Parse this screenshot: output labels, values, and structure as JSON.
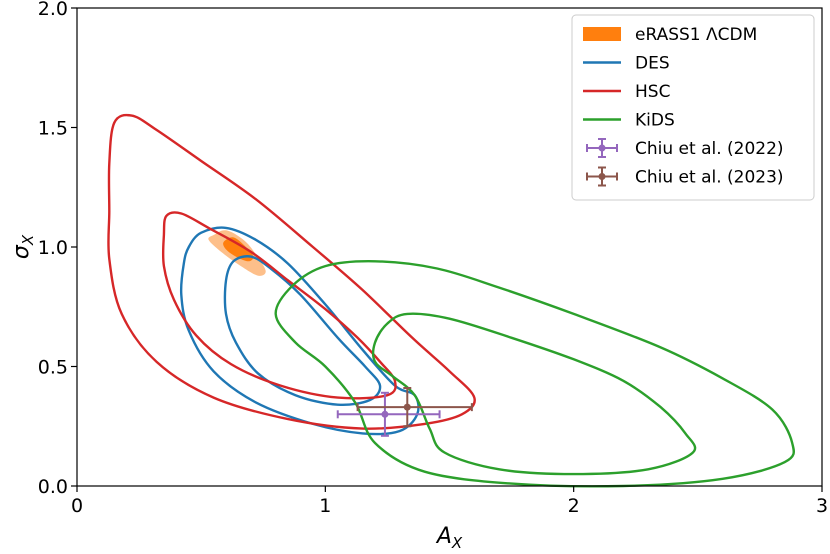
{
  "chart_data": {
    "type": "contour",
    "xlabel": "A",
    "xlabel_sub": "X",
    "ylabel": "σ",
    "ylabel_sub": "X",
    "xlim": [
      0,
      3
    ],
    "ylim": [
      0,
      2
    ],
    "x_ticks": [
      0,
      1,
      2,
      3
    ],
    "x_tick_labels": [
      "0",
      "1",
      "2",
      "3"
    ],
    "y_ticks": [
      0,
      0.5,
      1,
      1.5,
      2
    ],
    "y_tick_labels": [
      "0.0",
      "0.5",
      "1.0",
      "1.5",
      "2.0"
    ],
    "legend_position": "top-right",
    "colors": {
      "erass_outer": "#fdbf8a",
      "erass_inner": "#ff7f0e",
      "des": "#1f77b4",
      "hsc": "#d62728",
      "kids": "#2ca02c",
      "chiu2022": "#9467bd",
      "chiu2023": "#8c564b"
    },
    "series": [
      {
        "name": "eRASS1 ΛCDM",
        "kind": "filled",
        "contours": [
          [
            [
              0.55,
              1.05
            ],
            [
              0.6,
              1.07
            ],
            [
              0.67,
              1.03
            ],
            [
              0.72,
              0.97
            ],
            [
              0.76,
              0.9
            ],
            [
              0.73,
              0.88
            ],
            [
              0.66,
              0.92
            ],
            [
              0.58,
              0.98
            ],
            [
              0.53,
              1.03
            ]
          ],
          [
            [
              0.59,
              1.02
            ],
            [
              0.63,
              1.04
            ],
            [
              0.68,
              1.0
            ],
            [
              0.71,
              0.96
            ],
            [
              0.69,
              0.94
            ],
            [
              0.64,
              0.96
            ],
            [
              0.6,
              0.99
            ]
          ]
        ]
      },
      {
        "name": "DES",
        "kind": "line",
        "contours": [
          [
            [
              0.45,
              1.0
            ],
            [
              0.5,
              1.06
            ],
            [
              0.6,
              1.08
            ],
            [
              0.72,
              1.03
            ],
            [
              0.85,
              0.93
            ],
            [
              1.0,
              0.76
            ],
            [
              1.15,
              0.57
            ],
            [
              1.28,
              0.42
            ],
            [
              1.36,
              0.38
            ],
            [
              1.37,
              0.3
            ],
            [
              1.3,
              0.23
            ],
            [
              1.15,
              0.22
            ],
            [
              0.95,
              0.26
            ],
            [
              0.72,
              0.35
            ],
            [
              0.55,
              0.48
            ],
            [
              0.45,
              0.65
            ],
            [
              0.42,
              0.8
            ],
            [
              0.43,
              0.93
            ]
          ],
          [
            [
              0.6,
              0.86
            ],
            [
              0.63,
              0.94
            ],
            [
              0.7,
              0.96
            ],
            [
              0.78,
              0.91
            ],
            [
              0.9,
              0.8
            ],
            [
              1.05,
              0.62
            ],
            [
              1.16,
              0.5
            ],
            [
              1.22,
              0.42
            ],
            [
              1.18,
              0.36
            ],
            [
              1.05,
              0.34
            ],
            [
              0.88,
              0.38
            ],
            [
              0.73,
              0.47
            ],
            [
              0.64,
              0.6
            ],
            [
              0.6,
              0.72
            ]
          ]
        ]
      },
      {
        "name": "HSC",
        "kind": "line",
        "contours": [
          [
            [
              0.13,
              1.35
            ],
            [
              0.15,
              1.52
            ],
            [
              0.22,
              1.55
            ],
            [
              0.32,
              1.49
            ],
            [
              0.5,
              1.36
            ],
            [
              0.72,
              1.2
            ],
            [
              0.95,
              1.0
            ],
            [
              1.15,
              0.82
            ],
            [
              1.35,
              0.62
            ],
            [
              1.5,
              0.48
            ],
            [
              1.6,
              0.37
            ],
            [
              1.55,
              0.3
            ],
            [
              1.4,
              0.26
            ],
            [
              1.15,
              0.24
            ],
            [
              0.85,
              0.28
            ],
            [
              0.55,
              0.37
            ],
            [
              0.32,
              0.52
            ],
            [
              0.18,
              0.72
            ],
            [
              0.13,
              0.95
            ],
            [
              0.13,
              1.15
            ]
          ],
          [
            [
              0.35,
              1.05
            ],
            [
              0.36,
              1.13
            ],
            [
              0.42,
              1.14
            ],
            [
              0.53,
              1.08
            ],
            [
              0.7,
              0.98
            ],
            [
              0.85,
              0.86
            ],
            [
              1.0,
              0.74
            ],
            [
              1.13,
              0.62
            ],
            [
              1.22,
              0.52
            ],
            [
              1.28,
              0.44
            ],
            [
              1.25,
              0.38
            ],
            [
              1.05,
              0.37
            ],
            [
              0.82,
              0.42
            ],
            [
              0.62,
              0.51
            ],
            [
              0.48,
              0.63
            ],
            [
              0.39,
              0.78
            ],
            [
              0.35,
              0.92
            ]
          ]
        ]
      },
      {
        "name": "KiDS",
        "kind": "line",
        "contours": [
          [
            [
              0.8,
              0.72
            ],
            [
              0.87,
              0.84
            ],
            [
              1.0,
              0.92
            ],
            [
              1.2,
              0.94
            ],
            [
              1.45,
              0.91
            ],
            [
              1.7,
              0.83
            ],
            [
              2.0,
              0.72
            ],
            [
              2.35,
              0.58
            ],
            [
              2.6,
              0.45
            ],
            [
              2.8,
              0.32
            ],
            [
              2.88,
              0.18
            ],
            [
              2.85,
              0.1
            ],
            [
              2.6,
              0.03
            ],
            [
              2.2,
              0.0
            ],
            [
              1.75,
              0.01
            ],
            [
              1.4,
              0.06
            ],
            [
              1.2,
              0.18
            ],
            [
              1.12,
              0.35
            ],
            [
              1.0,
              0.5
            ],
            [
              0.88,
              0.6
            ]
          ],
          [
            [
              1.2,
              0.6
            ],
            [
              1.25,
              0.68
            ],
            [
              1.33,
              0.72
            ],
            [
              1.5,
              0.7
            ],
            [
              1.75,
              0.62
            ],
            [
              2.0,
              0.53
            ],
            [
              2.2,
              0.44
            ],
            [
              2.35,
              0.33
            ],
            [
              2.45,
              0.22
            ],
            [
              2.48,
              0.14
            ],
            [
              2.3,
              0.07
            ],
            [
              2.0,
              0.05
            ],
            [
              1.7,
              0.07
            ],
            [
              1.48,
              0.14
            ],
            [
              1.42,
              0.24
            ],
            [
              1.36,
              0.38
            ],
            [
              1.27,
              0.46
            ],
            [
              1.2,
              0.52
            ]
          ]
        ]
      }
    ],
    "errorbars": [
      {
        "name": "Chiu et al. (2022)",
        "x": 1.24,
        "y": 0.3,
        "xerr": [
          0.19,
          0.22
        ],
        "yerr": [
          0.09,
          0.09
        ]
      },
      {
        "name": "Chiu et al. (2023)",
        "x": 1.33,
        "y": 0.33,
        "xerr": [
          0.2,
          0.26
        ],
        "yerr": [
          0.08,
          0.08
        ]
      }
    ]
  }
}
